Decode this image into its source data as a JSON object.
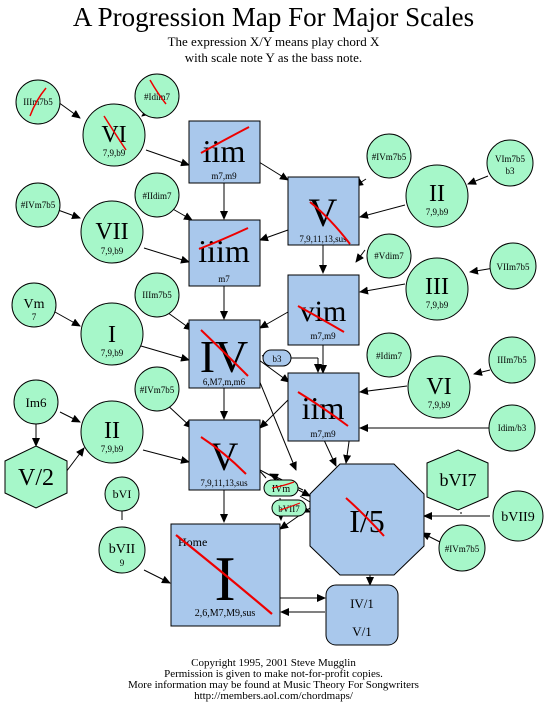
{
  "title": "A Progression Map For Major Scales",
  "subtitle_line1": "The expression X/Y means play chord X",
  "subtitle_line2": "with scale note Y as the bass note.",
  "credits": {
    "line1": "Copyright 1995, 2001 Steve Mugglin",
    "line2": "Permission is given to make not-for-profit copies.",
    "line3": "More information may be found at Music Theory For Songwriters",
    "line4": "http://members.aol.com/chordmaps/"
  },
  "colors": {
    "box_fill": "#a9c8ec",
    "circle_fill": "#a6f7c9",
    "cross_mark": "#ee0000",
    "line": "#000000"
  },
  "boxes": {
    "ii": {
      "main": "iim",
      "sub": "m7,m9"
    },
    "V_upper": {
      "main": "V",
      "sub": "7,9,11,13,sus"
    },
    "iii": {
      "main": "iiim",
      "sub": "m7"
    },
    "vi": {
      "main": "vim",
      "sub": "m7,m9"
    },
    "IV": {
      "main": "IV",
      "sub": "6,M7,m,m6"
    },
    "ii_lower": {
      "main": "iim",
      "sub": "m7,m9"
    },
    "V_lower": {
      "main": "V",
      "sub": "7,9,11,13,sus"
    },
    "home": {
      "tag": "Home",
      "main": "I",
      "sub": "2,6,M7,M9,sus"
    },
    "inv": {
      "line1": "IV/1",
      "line2": "V/1"
    }
  },
  "circles": {
    "iiim7b5_a": {
      "main": "IIIm7b5"
    },
    "vi_sec": {
      "main": "VI",
      "sub": "7,9,b9"
    },
    "idim7": {
      "main": "#Idim7"
    },
    "ivm7b5_a": {
      "main": "#IVm7b5"
    },
    "vim7b5": {
      "main": "VIm7b5",
      "sub": "b3"
    },
    "ii_sec": {
      "main": "II",
      "sub": "7,9,b9"
    },
    "ivm7b5_b": {
      "main": "#IVm7b5"
    },
    "vii_sec": {
      "main": "VII",
      "sub": "7,9,b9"
    },
    "iidim7": {
      "main": "#IIdim7"
    },
    "vdim7": {
      "main": "#Vdim7"
    },
    "iii_sec": {
      "main": "III",
      "sub": "7,9,b9"
    },
    "viim7b5": {
      "main": "VIIm7b5"
    },
    "vm": {
      "main": "Vm",
      "sub": "7"
    },
    "i_sec": {
      "main": "I",
      "sub": "7,9,b9"
    },
    "iiim7b5_b": {
      "main": "IIIm7b5"
    },
    "idim7_b": {
      "main": "#Idim7"
    },
    "vi_sec2": {
      "main": "VI",
      "sub": "7,9,b9"
    },
    "iiim7b5_c": {
      "main": "IIIm7b5"
    },
    "im6": {
      "main": "Im6"
    },
    "ii_sec2": {
      "main": "II",
      "sub": "7,9,b9"
    },
    "ivm7b5_c": {
      "main": "#IVm7b5"
    },
    "idimb3": {
      "main": "Idim/b3"
    },
    "bvi": {
      "main": "bVI"
    },
    "bvii": {
      "main": "bVII",
      "sub": "9"
    },
    "bvii9": {
      "main": "bVII9"
    },
    "ivm7b5_d": {
      "main": "#IVm7b5"
    }
  },
  "pills": {
    "b3": "b3",
    "ivm": "IVm",
    "bvii7": "bVII7"
  },
  "octagon": {
    "main": "I/5"
  },
  "hex": {
    "v2": "V/2",
    "bvi7": "bVI7"
  }
}
